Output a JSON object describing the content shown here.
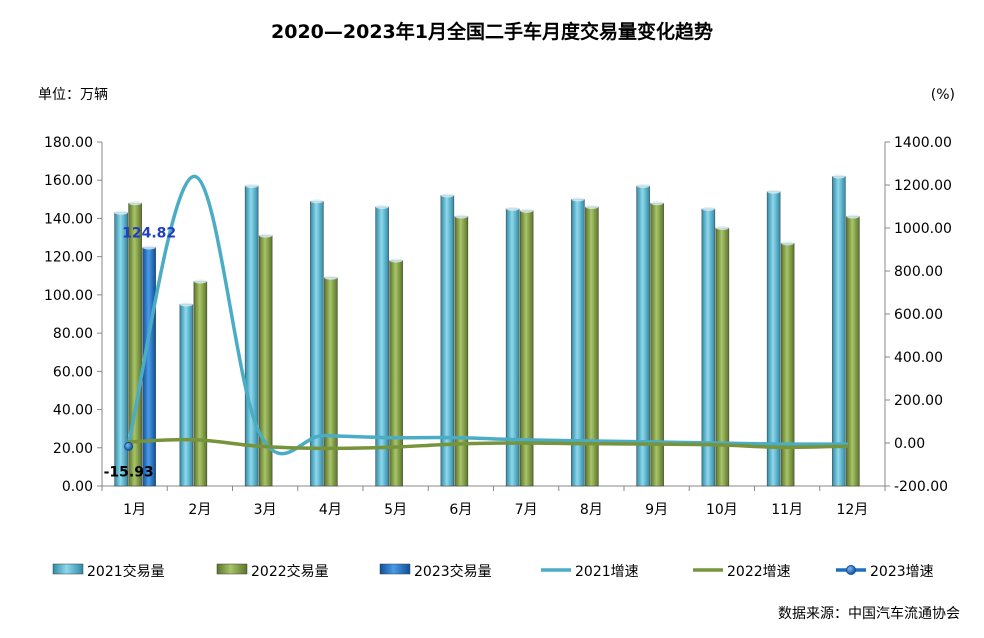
{
  "chart_data": {
    "type": "bar",
    "title": "2020—2023年1月全国二手车月度交易量变化趋势",
    "y_left_unit": "单位：万辆",
    "y_right_unit": "(%)",
    "source": "数据来源：中国汽车流通协会",
    "categories": [
      "1月",
      "2月",
      "3月",
      "4月",
      "5月",
      "6月",
      "7月",
      "8月",
      "9月",
      "10月",
      "11月",
      "12月"
    ],
    "ylim_left": [
      0,
      180
    ],
    "ylim_right": [
      -200,
      1400
    ],
    "y_left_ticks": [
      "0.00",
      "20.00",
      "40.00",
      "60.00",
      "80.00",
      "100.00",
      "120.00",
      "140.00",
      "160.00",
      "180.00"
    ],
    "y_right_ticks": [
      "-200.00",
      "0.00",
      "200.00",
      "400.00",
      "600.00",
      "800.00",
      "1000.00",
      "1200.00",
      "1400.00"
    ],
    "bar_series": [
      {
        "name": "2021交易量",
        "color": "#4bacc6",
        "values": [
          143,
          95,
          157,
          149,
          146,
          152,
          145,
          150,
          157,
          145,
          154,
          162
        ]
      },
      {
        "name": "2022交易量",
        "color": "#77933c",
        "values": [
          148,
          107,
          131,
          109,
          118,
          141,
          144,
          146,
          148,
          135,
          127,
          141
        ]
      },
      {
        "name": "2023交易量",
        "color": "#1f6fbf",
        "values": [
          124.82,
          null,
          null,
          null,
          null,
          null,
          null,
          null,
          null,
          null,
          null,
          null
        ]
      }
    ],
    "line_series": [
      {
        "name": "2021增速",
        "color": "#4bacc6",
        "values": [
          0,
          1240,
          50,
          35,
          25,
          25,
          15,
          10,
          5,
          0,
          -5,
          -5
        ]
      },
      {
        "name": "2022增速",
        "color": "#77933c",
        "values": [
          5,
          15,
          -15,
          -25,
          -20,
          -5,
          0,
          -3,
          -5,
          -8,
          -20,
          -15
        ]
      },
      {
        "name": "2023增速",
        "color": "#1f6fbf",
        "values": [
          -15.93,
          null,
          null,
          null,
          null,
          null,
          null,
          null,
          null,
          null,
          null,
          null
        ]
      }
    ],
    "data_labels": [
      {
        "text": "124.82",
        "series": "2023交易量",
        "category": "1月",
        "color": "#1f3fbf"
      },
      {
        "text": "-15.93",
        "series": "2023增速",
        "category": "1月",
        "color": "#000000"
      }
    ],
    "legend_position": "bottom",
    "grid": false
  }
}
